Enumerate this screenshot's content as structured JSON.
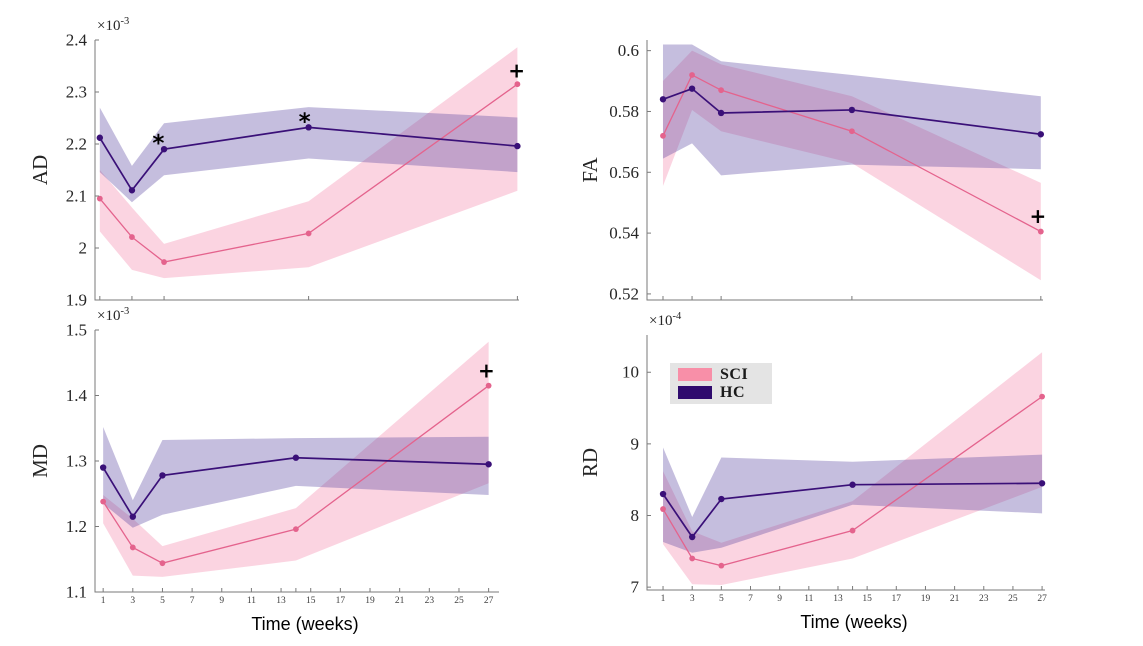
{
  "legend": {
    "background": "#E4E4E4",
    "items": [
      {
        "label": "SCI",
        "color": "#F88FA8"
      },
      {
        "label": "HC",
        "color": "#2F0B6E"
      }
    ]
  },
  "colors": {
    "axis": "#7A7A7A",
    "ytick_label": "#262626",
    "xtick_label": "#404040",
    "sci_line": "#E4638D",
    "hc_line": "#3A1078",
    "sci_band": "#F48FB0",
    "hc_band": "#5A45A0",
    "annotation": "#000000"
  },
  "chart_data": [
    {
      "id": "AD",
      "type": "line",
      "ylabel": "AD",
      "scale_label": {
        "base": "×10",
        "exponent": "-3"
      },
      "xlabel": "",
      "xlim": [
        0.7,
        27.1
      ],
      "ylim": [
        1.9,
        2.4
      ],
      "yticks": [
        1.9,
        2,
        2.1,
        2.2,
        2.3,
        2.4
      ],
      "ytick_labels": [
        "1.9",
        "2",
        "2.1",
        "2.2",
        "2.3",
        "2.4"
      ],
      "xticks": [
        1,
        3,
        5,
        14,
        27
      ],
      "xtick_labels": [],
      "x": [
        1,
        3,
        5,
        14,
        27
      ],
      "series": [
        {
          "name": "SCI",
          "color": "#E4638D",
          "band_color": "#F48FB0",
          "values": [
            2.095,
            2.021,
            1.973,
            2.028,
            2.315
          ],
          "band_upper": [
            2.15,
            2.078,
            2.008,
            2.09,
            2.386
          ],
          "band_lower": [
            2.032,
            1.958,
            1.942,
            1.963,
            2.11
          ]
        },
        {
          "name": "HC",
          "color": "#3A1078",
          "band_color": "#5A45A0",
          "values": [
            2.212,
            2.111,
            2.19,
            2.232,
            2.196
          ],
          "band_upper": [
            2.27,
            2.158,
            2.24,
            2.271,
            2.251
          ],
          "band_lower": [
            2.146,
            2.088,
            2.14,
            2.172,
            2.146
          ]
        }
      ],
      "annotations": [
        {
          "symbol": "*",
          "x": 4.65,
          "y": 2.212
        },
        {
          "symbol": "*",
          "x": 13.75,
          "y": 2.253
        },
        {
          "symbol": "+",
          "x": 26.95,
          "y": 2.343
        }
      ]
    },
    {
      "id": "FA",
      "type": "line",
      "ylabel": "FA",
      "scale_label": null,
      "xlabel": "",
      "xlim": [
        -0.1,
        27.15
      ],
      "ylim": [
        0.518,
        0.6035
      ],
      "yticks": [
        0.52,
        0.54,
        0.56,
        0.58,
        0.6
      ],
      "ytick_labels": [
        "0.52",
        "0.54",
        "0.56",
        "0.58",
        "0.6"
      ],
      "xticks": [
        1,
        3,
        5,
        14,
        27
      ],
      "xtick_labels": [],
      "x": [
        1,
        3,
        5,
        14,
        27
      ],
      "series": [
        {
          "name": "SCI",
          "color": "#E4638D",
          "band_color": "#F48FB0",
          "values": [
            0.572,
            0.592,
            0.587,
            0.5735,
            0.5405
          ],
          "band_upper": [
            0.59,
            0.6,
            0.5955,
            0.585,
            0.5565
          ],
          "band_lower": [
            0.5555,
            0.5805,
            0.5735,
            0.563,
            0.5245
          ]
        },
        {
          "name": "HC",
          "color": "#3A1078",
          "band_color": "#5A45A0",
          "values": [
            0.584,
            0.5875,
            0.5795,
            0.5805,
            0.5725
          ],
          "band_upper": [
            0.602,
            0.602,
            0.5965,
            0.592,
            0.585
          ],
          "band_lower": [
            0.5645,
            0.5695,
            0.559,
            0.5625,
            0.561
          ]
        }
      ],
      "annotations": [
        {
          "symbol": "+",
          "x": 26.8,
          "y": 0.546
        }
      ]
    },
    {
      "id": "MD",
      "type": "line",
      "ylabel": "MD",
      "scale_label": {
        "base": "×10",
        "exponent": "-3"
      },
      "xlabel": "Time (weeks)",
      "xlim": [
        0.45,
        27.7
      ],
      "ylim": [
        1.1,
        1.5
      ],
      "yticks": [
        1.1,
        1.2,
        1.3,
        1.4,
        1.5
      ],
      "ytick_labels": [
        "1.1",
        "1.2",
        "1.3",
        "1.4",
        "1.5"
      ],
      "xticks": [
        1,
        3,
        5,
        7,
        9,
        11,
        13,
        14,
        15,
        17,
        19,
        21,
        23,
        25,
        27
      ],
      "xtick_labels": [
        "1",
        "3",
        "5",
        "7",
        "9",
        "11",
        "13",
        "",
        "15",
        "17",
        "19",
        "21",
        "23",
        "25",
        "27"
      ],
      "x": [
        1,
        3,
        5,
        14,
        27
      ],
      "series": [
        {
          "name": "SCI",
          "color": "#E4638D",
          "band_color": "#F48FB0",
          "values": [
            1.238,
            1.168,
            1.144,
            1.196,
            1.415
          ],
          "band_upper": [
            1.248,
            1.212,
            1.17,
            1.228,
            1.482
          ],
          "band_lower": [
            1.205,
            1.125,
            1.123,
            1.148,
            1.266
          ]
        },
        {
          "name": "HC",
          "color": "#3A1078",
          "band_color": "#5A45A0",
          "values": [
            1.29,
            1.215,
            1.278,
            1.305,
            1.295
          ],
          "band_upper": [
            1.352,
            1.24,
            1.332,
            1.335,
            1.337
          ],
          "band_lower": [
            1.235,
            1.198,
            1.218,
            1.262,
            1.248
          ]
        }
      ],
      "annotations": [
        {
          "symbol": "+",
          "x": 26.85,
          "y": 1.44
        }
      ]
    },
    {
      "id": "RD",
      "type": "line",
      "ylabel": "RD",
      "scale_label": {
        "base": "×10",
        "exponent": "-4"
      },
      "xlabel": "Time (weeks)",
      "xlim": [
        -0.1,
        27.2
      ],
      "ylim": [
        6.96,
        10.52
      ],
      "yticks": [
        7,
        8,
        9,
        10
      ],
      "ytick_labels": [
        "7",
        "8",
        "9",
        "10"
      ],
      "xticks": [
        1,
        3,
        5,
        7,
        9,
        11,
        13,
        14,
        15,
        17,
        19,
        21,
        23,
        25,
        27
      ],
      "xtick_labels": [
        "1",
        "3",
        "5",
        "7",
        "9",
        "11",
        "13",
        "",
        "15",
        "17",
        "19",
        "21",
        "23",
        "25",
        "27"
      ],
      "x": [
        1,
        3,
        5,
        14,
        27
      ],
      "series": [
        {
          "name": "SCI",
          "color": "#E4638D",
          "band_color": "#F48FB0",
          "values": [
            8.09,
            7.4,
            7.3,
            7.79,
            9.66
          ],
          "band_upper": [
            8.62,
            7.78,
            7.62,
            8.2,
            10.28
          ],
          "band_lower": [
            7.6,
            7.04,
            7.03,
            7.4,
            8.4
          ]
        },
        {
          "name": "HC",
          "color": "#3A1078",
          "band_color": "#5A45A0",
          "values": [
            8.3,
            7.7,
            8.23,
            8.43,
            8.45
          ],
          "band_upper": [
            8.95,
            7.98,
            8.81,
            8.75,
            8.85
          ],
          "band_lower": [
            7.63,
            7.48,
            7.55,
            8.15,
            8.03
          ]
        }
      ],
      "annotations": []
    }
  ]
}
